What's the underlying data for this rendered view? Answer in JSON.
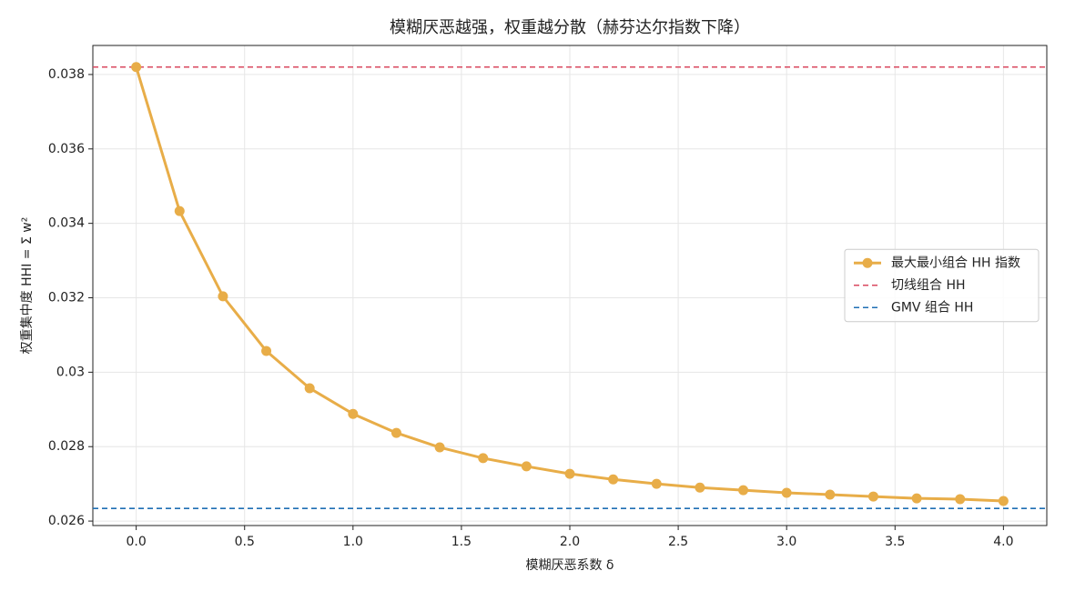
{
  "chart_data": {
    "type": "line",
    "title": "模糊厌恶越强，权重越分散（赫芬达尔指数下降）",
    "xlabel": "模糊厌恶系数 δ",
    "ylabel": "权重集中度 HHI = Σ w²",
    "x": [
      0.0,
      0.2,
      0.4,
      0.6,
      0.8,
      1.0,
      1.2,
      1.4,
      1.6,
      1.8,
      2.0,
      2.2,
      2.4,
      2.6,
      2.8,
      3.0,
      3.2,
      3.4,
      3.6,
      3.8,
      4.0
    ],
    "series": [
      {
        "name": "最大最小组合 HH 指数",
        "color": "#e8ad48",
        "values": [
          0.0382,
          0.03433,
          0.03204,
          0.03057,
          0.02957,
          0.02888,
          0.02837,
          0.02798,
          0.02769,
          0.02747,
          0.02727,
          0.02712,
          0.027,
          0.0269,
          0.02683,
          0.02676,
          0.02671,
          0.02666,
          0.02661,
          0.02659,
          0.02654
        ]
      }
    ],
    "hlines": [
      {
        "name": "切线组合 HH",
        "color": "#d9485f",
        "value": 0.0382
      },
      {
        "name": "GMV 组合 HH",
        "color": "#1f6fb4",
        "value": 0.02634
      }
    ],
    "xlim": [
      -0.2,
      4.2
    ],
    "ylim": [
      0.02588,
      0.03878
    ],
    "xticks": [
      {
        "value": 0,
        "label": "0.0"
      },
      {
        "value": 0.5,
        "label": "0.5"
      },
      {
        "value": 1,
        "label": "1.0"
      },
      {
        "value": 1.5,
        "label": "1.5"
      },
      {
        "value": 2,
        "label": "2.0"
      },
      {
        "value": 2.5,
        "label": "2.5"
      },
      {
        "value": 3,
        "label": "3.0"
      },
      {
        "value": 3.5,
        "label": "3.5"
      },
      {
        "value": 4,
        "label": "4.0"
      }
    ],
    "yticks": [
      0.026,
      0.028,
      0.03,
      0.032,
      0.034,
      0.036,
      0.038
    ],
    "grid": true,
    "legend": "center right"
  }
}
